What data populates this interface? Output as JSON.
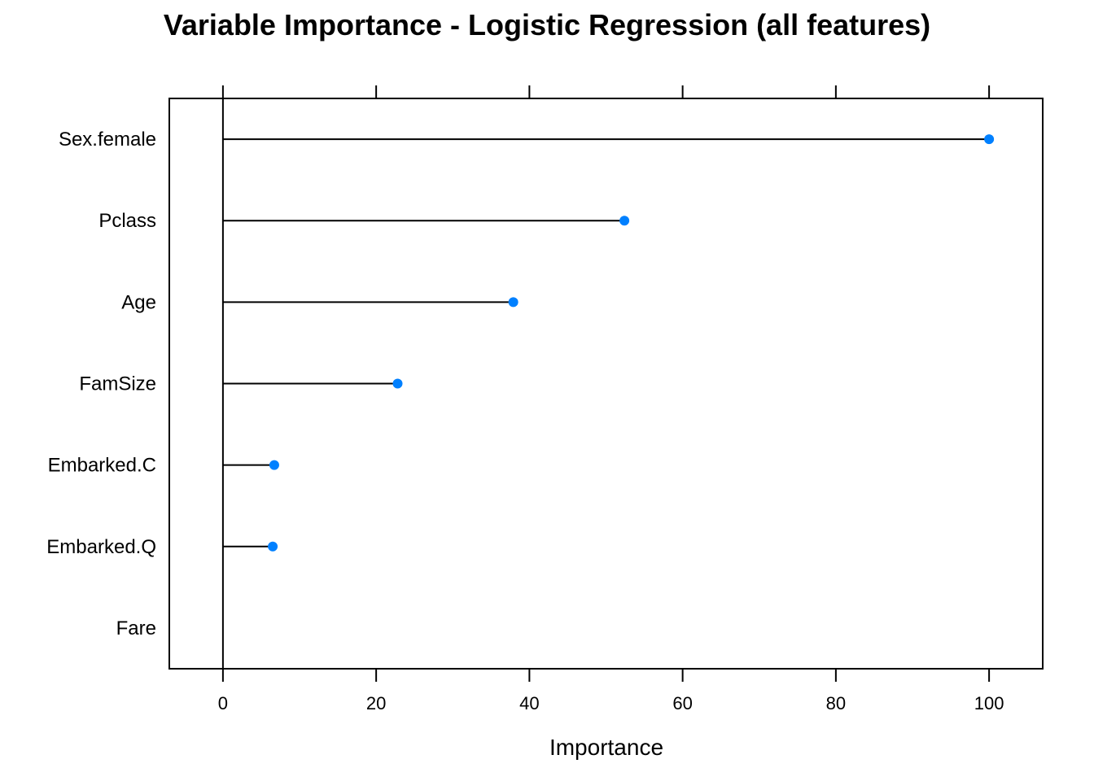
{
  "chart_data": {
    "type": "dot",
    "title": "Variable Importance - Logistic Regression (all features)",
    "xlabel": "Importance",
    "ylabel": "",
    "xlim": [
      -7,
      107
    ],
    "xticks": [
      0,
      20,
      40,
      60,
      80,
      100
    ],
    "categories": [
      "Sex.female",
      "Pclass",
      "Age",
      "FamSize",
      "Embarked.C",
      "Embarked.Q",
      "Fare"
    ],
    "values": [
      100,
      52.4,
      37.9,
      22.8,
      6.7,
      6.5,
      0
    ],
    "grid": false,
    "legend": "none",
    "colors": {
      "point": "#0080ff",
      "line": "#000000",
      "frame": "#000000"
    }
  }
}
